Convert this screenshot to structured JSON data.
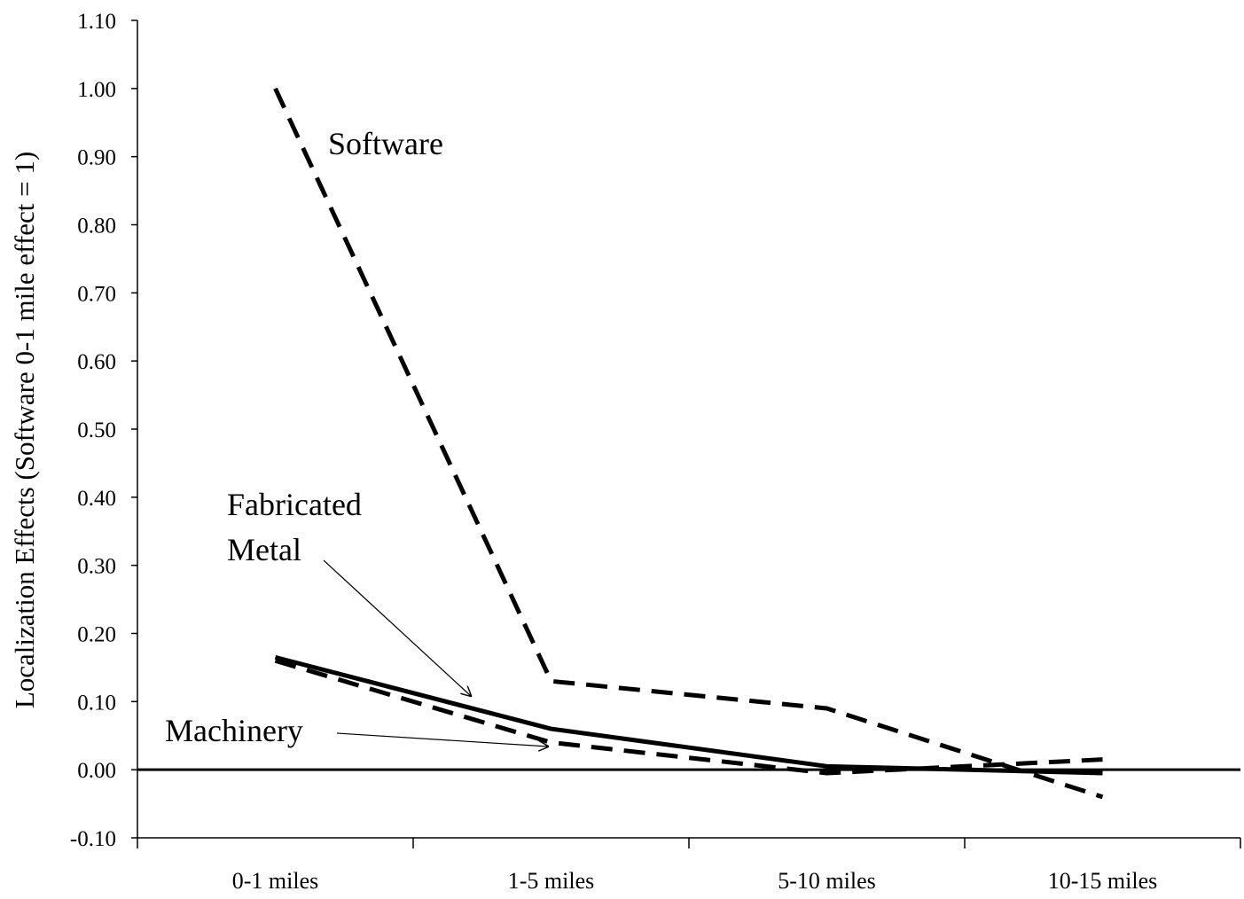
{
  "chart_data": {
    "type": "line",
    "title": "",
    "xlabel": "",
    "ylabel": "Localization Effects (Software 0-1 mile effect = 1)",
    "categories": [
      "0-1 miles",
      "1-5 miles",
      "5-10 miles",
      "10-15 miles"
    ],
    "ylim": [
      -0.1,
      1.1
    ],
    "yticks": [
      "1.10",
      "1.00",
      "0.90",
      "0.80",
      "0.70",
      "0.60",
      "0.50",
      "0.40",
      "0.30",
      "0.20",
      "0.10",
      "0.00",
      "-0.10"
    ],
    "ytick_values": [
      1.1,
      1.0,
      0.9,
      0.8,
      0.7,
      0.6,
      0.5,
      0.4,
      0.3,
      0.2,
      0.1,
      0.0,
      -0.1
    ],
    "zero_line": true,
    "grid": false,
    "legend": "none (series labeled directly on chart)",
    "series": [
      {
        "name": "Software",
        "values": [
          1.0,
          0.13,
          0.09,
          -0.04
        ],
        "style": "dashed"
      },
      {
        "name": "Machinery",
        "values": [
          0.16,
          0.04,
          -0.005,
          0.015
        ],
        "style": "dashed"
      },
      {
        "name": "Fabricated Metal",
        "values": [
          0.165,
          0.06,
          0.005,
          -0.005
        ],
        "style": "solid"
      }
    ],
    "annotations": {
      "software": "Software",
      "fabricated_line1": "Fabricated",
      "fabricated_line2": "Metal",
      "machinery": "Machinery"
    },
    "line_color": "#000000"
  }
}
